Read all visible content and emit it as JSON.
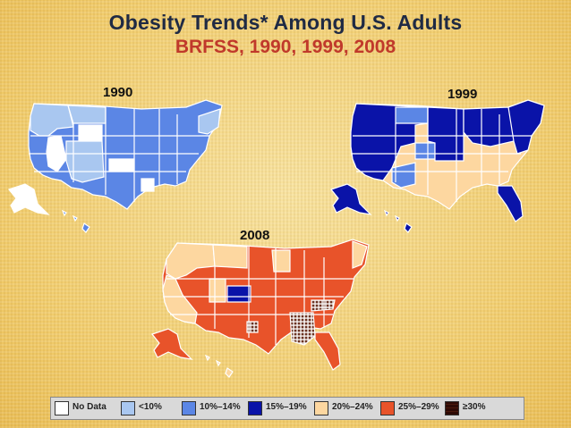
{
  "title": "Obesity Trends* Among U.S. Adults",
  "subtitle": "BRFSS, 1990, 1999, 2008",
  "maps": [
    {
      "year": "1990"
    },
    {
      "year": "1999"
    },
    {
      "year": "2008"
    }
  ],
  "legend": [
    {
      "label": "No Data",
      "color": "#ffffff"
    },
    {
      "label": "<10%",
      "color": "#a9c7f0"
    },
    {
      "label": "10%–14%",
      "color": "#5b86e5"
    },
    {
      "label": "15%–19%",
      "color": "#0a13a8"
    },
    {
      "label": "20%–24%",
      "color": "#fdd7a0"
    },
    {
      "label": "25%–29%",
      "color": "#e8532a"
    },
    {
      "label": "≥30%",
      "color": "#6b3222"
    }
  ]
}
